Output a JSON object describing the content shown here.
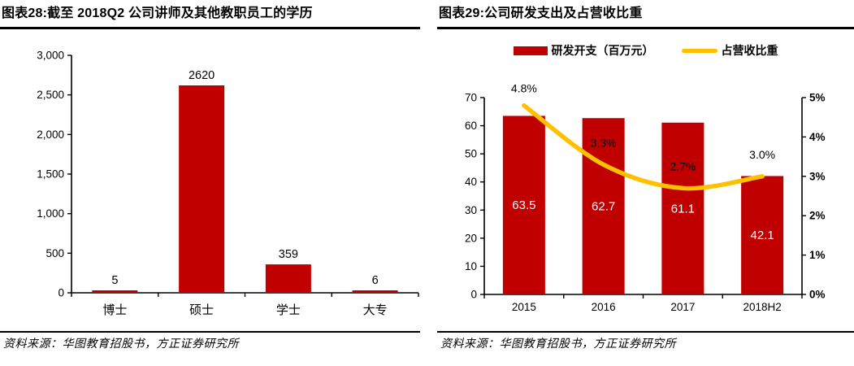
{
  "colors": {
    "bar_red": "#C00000",
    "line_yellow": "#FFC000",
    "axis_black": "#000000",
    "bar_value_white": "#FFFFFF"
  },
  "left_panel": {
    "title": "图表28:截至 2018Q2 公司讲师及其他教职员工的学历",
    "source": "资料来源：华图教育招股书，方正证券研究所"
  },
  "right_panel": {
    "title": "图表29:公司研发支出及占营收比重",
    "legend": [
      {
        "label": "研发开支（百万元）",
        "type": "bar",
        "color": "#C00000"
      },
      {
        "label": "占营收比重",
        "type": "line",
        "color": "#FFC000"
      }
    ],
    "source": "资料来源：华图教育招股书，方正证券研究所"
  },
  "chart_data": [
    {
      "type": "bar",
      "title": "图表28:截至 2018Q2 公司讲师及其他教职员工的学历",
      "categories": [
        "博士",
        "硕士",
        "学士",
        "大专"
      ],
      "values": [
        5,
        2620,
        359,
        6
      ],
      "data_labels": [
        "5",
        "2620",
        "359",
        "6"
      ],
      "ylim": [
        0,
        3000
      ],
      "ytick_step": 500,
      "ytick_labels": [
        "0",
        "500",
        "1,000",
        "1,500",
        "2,000",
        "2,500",
        "3,000"
      ],
      "bar_color": "#C00000",
      "grid": false,
      "legend_position": "none"
    },
    {
      "type": "bar+line",
      "title": "图表29:公司研发支出及占营收比重",
      "categories": [
        "2015",
        "2016",
        "2017",
        "2018H2"
      ],
      "series": [
        {
          "name": "研发开支（百万元）",
          "type": "bar",
          "axis": "left",
          "values": [
            63.5,
            62.7,
            61.1,
            42.1
          ],
          "labels": [
            "63.5",
            "62.7",
            "61.1",
            "42.1"
          ],
          "color": "#C00000"
        },
        {
          "name": "占营收比重",
          "type": "line",
          "axis": "right",
          "values": [
            4.8,
            3.3,
            2.7,
            3.0
          ],
          "labels": [
            "4.8%",
            "3.3%",
            "2.7%",
            "3.0%"
          ],
          "color": "#FFC000"
        }
      ],
      "y_left": {
        "min": 0,
        "max": 70,
        "step": 10,
        "tick_labels": [
          "0",
          "10",
          "20",
          "30",
          "40",
          "50",
          "60",
          "70"
        ]
      },
      "y_right": {
        "min": 0,
        "max": 5,
        "step": 1,
        "tick_labels": [
          "0%",
          "1%",
          "2%",
          "3%",
          "4%",
          "5%"
        ]
      },
      "grid": false,
      "legend_position": "top"
    }
  ]
}
